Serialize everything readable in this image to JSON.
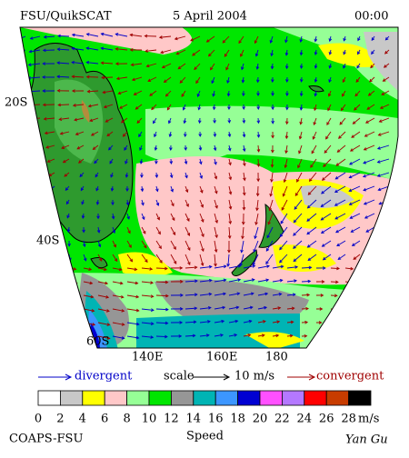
{
  "header": {
    "product": "FSU/QuikSCAT",
    "date": "5 April 2004",
    "time": "00:00"
  },
  "map": {
    "lat_labels": [
      "20S",
      "40S",
      "60S"
    ],
    "lon_labels": [
      "140E",
      "160E",
      "180"
    ]
  },
  "legend": {
    "divergent": "divergent",
    "scale": "scale",
    "scale_value": "10 m/s",
    "convergent": "convergent"
  },
  "colorbar": {
    "title": "Speed",
    "unit": "m/s",
    "ticks": [
      0,
      2,
      4,
      6,
      8,
      10,
      12,
      14,
      16,
      18,
      20,
      22,
      24,
      26,
      28
    ],
    "colors": [
      "#ffffff",
      "#c8c8c8",
      "#ffff00",
      "#ffc8c8",
      "#96ff96",
      "#00e600",
      "#969696",
      "#00b4b4",
      "#3c96ff",
      "#0000d2",
      "#ff50ff",
      "#b478ff",
      "#ff0000",
      "#c83c00",
      "#000000"
    ]
  },
  "footer": {
    "credit": "COAPS-FSU",
    "author": "Yan Gu"
  }
}
